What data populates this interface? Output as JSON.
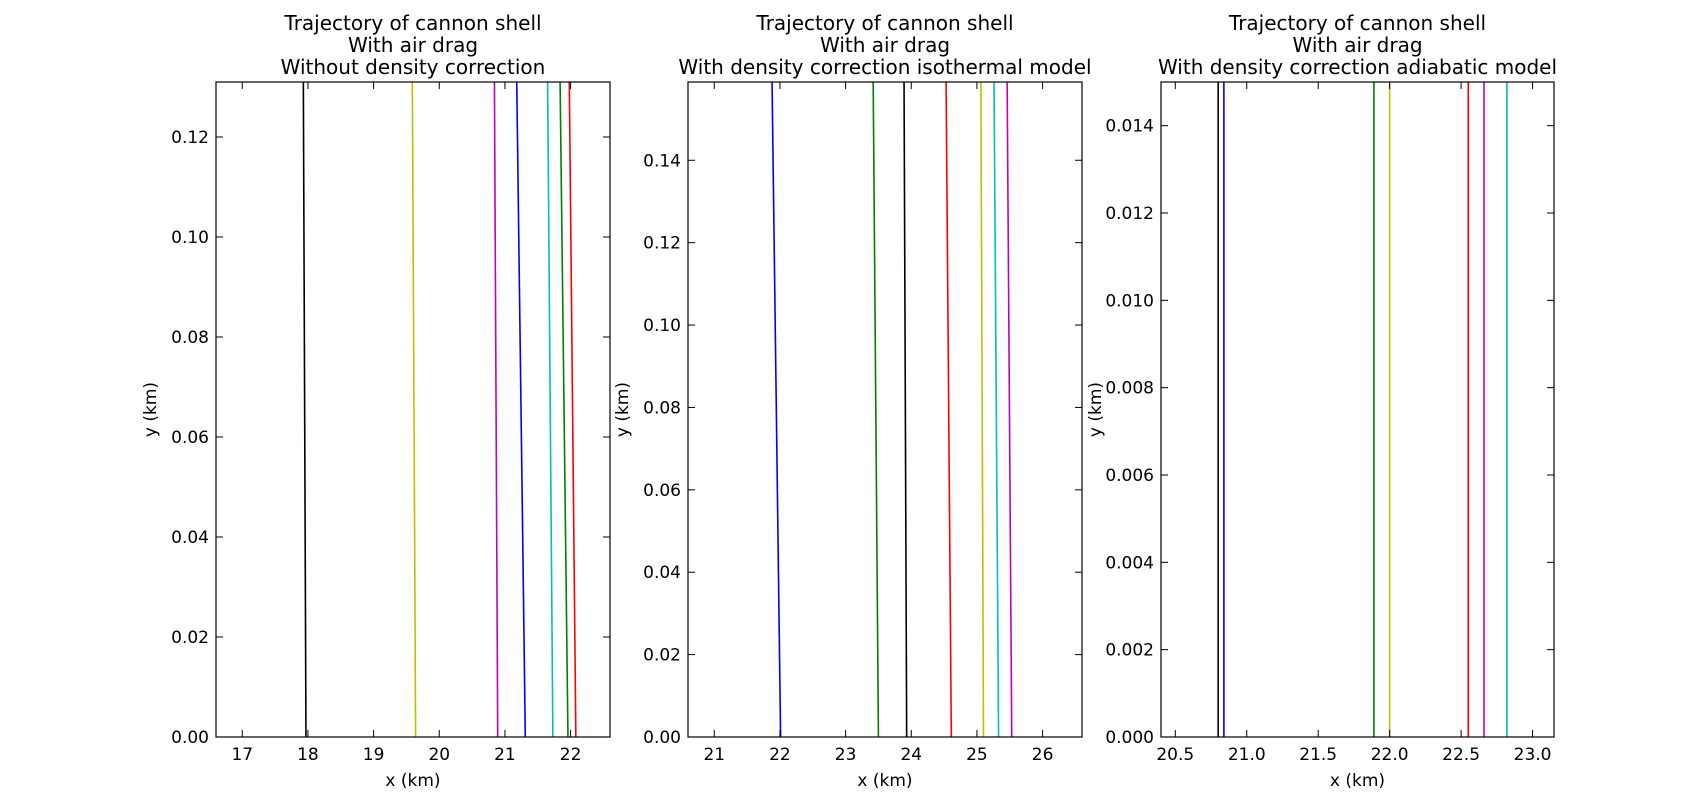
{
  "colors": {
    "black": "#000000",
    "yellow": "#bfbf00",
    "magenta": "#bf00bf",
    "blue": "#0000ff",
    "cyan": "#00bfbf",
    "green": "#008000",
    "red": "#ff0000"
  },
  "chart_data": [
    {
      "type": "line",
      "title": [
        "Trajectory of cannon shell",
        "With air drag",
        "Without density correction"
      ],
      "xlabel": "x (km)",
      "ylabel": "y (km)",
      "xlim": [
        16.6,
        22.6
      ],
      "ylim": [
        0,
        0.131
      ],
      "xticks": [
        17,
        18,
        19,
        20,
        21,
        22
      ],
      "xtick_labels": [
        "17",
        "18",
        "19",
        "20",
        "21",
        "22"
      ],
      "yticks": [
        0,
        0.02,
        0.04,
        0.06,
        0.08,
        0.1,
        0.12
      ],
      "ytick_labels": [
        "0.00",
        "0.02",
        "0.04",
        "0.06",
        "0.08",
        "0.10",
        "0.12"
      ],
      "grid": false,
      "series": [
        {
          "color": "black",
          "x": [
            17.93,
            17.97
          ],
          "y": [
            0.131,
            0
          ]
        },
        {
          "color": "yellow",
          "x": [
            19.59,
            19.64
          ],
          "y": [
            0.131,
            0
          ]
        },
        {
          "color": "magenta",
          "x": [
            20.84,
            20.89
          ],
          "y": [
            0.131,
            0
          ]
        },
        {
          "color": "blue",
          "x": [
            21.18,
            21.31
          ],
          "y": [
            0.131,
            0
          ]
        },
        {
          "color": "cyan",
          "x": [
            21.65,
            21.73
          ],
          "y": [
            0.131,
            0
          ]
        },
        {
          "color": "green",
          "x": [
            21.84,
            21.96
          ],
          "y": [
            0.131,
            0
          ]
        },
        {
          "color": "red",
          "x": [
            21.98,
            22.08
          ],
          "y": [
            0.131,
            0
          ]
        }
      ]
    },
    {
      "type": "line",
      "title": [
        "Trajectory of cannon shell",
        "With air drag",
        "With density correction  isothermal model"
      ],
      "xlabel": "x (km)",
      "ylabel": "y (km)",
      "xlim": [
        20.6,
        26.6
      ],
      "ylim": [
        0,
        0.159
      ],
      "xticks": [
        21,
        22,
        23,
        24,
        25,
        26
      ],
      "xtick_labels": [
        "21",
        "22",
        "23",
        "24",
        "25",
        "26"
      ],
      "yticks": [
        0,
        0.02,
        0.04,
        0.06,
        0.08,
        0.1,
        0.12,
        0.14
      ],
      "ytick_labels": [
        "0.00",
        "0.02",
        "0.04",
        "0.06",
        "0.08",
        "0.10",
        "0.12",
        "0.14"
      ],
      "grid": false,
      "series": [
        {
          "color": "blue",
          "x": [
            21.88,
            22.01
          ],
          "y": [
            0.159,
            0
          ]
        },
        {
          "color": "green",
          "x": [
            23.42,
            23.5
          ],
          "y": [
            0.159,
            0
          ]
        },
        {
          "color": "black",
          "x": [
            23.89,
            23.93
          ],
          "y": [
            0.159,
            0
          ]
        },
        {
          "color": "red",
          "x": [
            24.53,
            24.61
          ],
          "y": [
            0.159,
            0
          ]
        },
        {
          "color": "yellow",
          "x": [
            25.06,
            25.1
          ],
          "y": [
            0.159,
            0
          ]
        },
        {
          "color": "cyan",
          "x": [
            25.26,
            25.33
          ],
          "y": [
            0.159,
            0
          ]
        },
        {
          "color": "magenta",
          "x": [
            25.46,
            25.53
          ],
          "y": [
            0.159,
            0
          ]
        }
      ]
    },
    {
      "type": "line",
      "title": [
        "Trajectory of cannon shell",
        "With air drag",
        "With density correction  adiabatic model"
      ],
      "xlabel": "x (km)",
      "ylabel": "y (km)",
      "xlim": [
        20.4,
        23.15
      ],
      "ylim": [
        0,
        0.015
      ],
      "xticks": [
        20.5,
        21.0,
        21.5,
        22.0,
        22.5,
        23.0
      ],
      "xtick_labels": [
        "20.5",
        "21.0",
        "21.5",
        "22.0",
        "22.5",
        "23.0"
      ],
      "yticks": [
        0,
        0.002,
        0.004,
        0.006,
        0.008,
        0.01,
        0.012,
        0.014
      ],
      "ytick_labels": [
        "0.000",
        "0.002",
        "0.004",
        "0.006",
        "0.008",
        "0.010",
        "0.012",
        "0.014"
      ],
      "grid": false,
      "series": [
        {
          "color": "black",
          "x": [
            20.8,
            20.8
          ],
          "y": [
            0.015,
            0
          ]
        },
        {
          "color": "blue",
          "x": [
            20.84,
            20.84
          ],
          "y": [
            0.015,
            0
          ]
        },
        {
          "color": "green",
          "x": [
            21.89,
            21.89
          ],
          "y": [
            0.015,
            0
          ]
        },
        {
          "color": "yellow",
          "x": [
            22.0,
            22.0
          ],
          "y": [
            0.015,
            0
          ]
        },
        {
          "color": "red",
          "x": [
            22.55,
            22.55
          ],
          "y": [
            0.015,
            0
          ]
        },
        {
          "color": "magenta",
          "x": [
            22.66,
            22.66
          ],
          "y": [
            0.015,
            0
          ]
        },
        {
          "color": "cyan",
          "x": [
            22.82,
            22.82
          ],
          "y": [
            0.015,
            0
          ]
        }
      ]
    }
  ]
}
